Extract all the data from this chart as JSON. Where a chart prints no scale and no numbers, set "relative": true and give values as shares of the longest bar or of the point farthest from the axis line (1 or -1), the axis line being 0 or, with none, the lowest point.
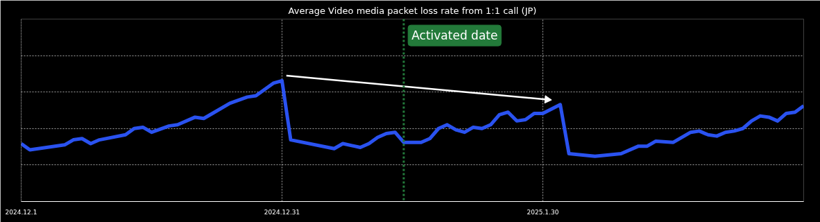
{
  "chart_data": {
    "type": "line",
    "title": "Average Video media packet loss rate from 1:1 call (JP)",
    "relative": true,
    "x": [
      "2024-12-01",
      "2024-12-02",
      "2024-12-06",
      "2024-12-07",
      "2024-12-08",
      "2024-12-09",
      "2024-12-10",
      "2024-12-13",
      "2024-12-14",
      "2024-12-15",
      "2024-12-16",
      "2024-12-18",
      "2024-12-19",
      "2024-12-21",
      "2024-12-22",
      "2024-12-23",
      "2024-12-25",
      "2024-12-27",
      "2024-12-28",
      "2024-12-30",
      "2024-12-31",
      "2025-01-01",
      "2025-01-06",
      "2025-01-07",
      "2025-01-09",
      "2025-01-10",
      "2025-01-11",
      "2025-01-12",
      "2025-01-13",
      "2025-01-14",
      "2025-01-16",
      "2025-01-17",
      "2025-01-18",
      "2025-01-19",
      "2025-01-20",
      "2025-01-21",
      "2025-01-22",
      "2025-01-23",
      "2025-01-24",
      "2025-01-25",
      "2025-01-26",
      "2025-01-27",
      "2025-01-28",
      "2025-01-29",
      "2025-01-30",
      "2025-02-01",
      "2025-02-02",
      "2025-02-05",
      "2025-02-08",
      "2025-02-10",
      "2025-02-11",
      "2025-02-12",
      "2025-02-14",
      "2025-02-16",
      "2025-02-17",
      "2025-02-18",
      "2025-02-19",
      "2025-02-20",
      "2025-02-21",
      "2025-02-22",
      "2025-02-23",
      "2025-02-24",
      "2025-02-25",
      "2025-02-26",
      "2025-02-27",
      "2025-02-28",
      "2025-03-01"
    ],
    "series": [
      {
        "color": "#2a52f0",
        "values": [
          0.46,
          0.41,
          0.45,
          0.49,
          0.5,
          0.46,
          0.49,
          0.53,
          0.58,
          0.59,
          0.55,
          0.6,
          0.61,
          0.67,
          0.66,
          0.7,
          0.78,
          0.83,
          0.84,
          0.94,
          0.96,
          0.49,
          0.42,
          0.46,
          0.43,
          0.46,
          0.51,
          0.54,
          0.55,
          0.47,
          0.47,
          0.5,
          0.58,
          0.61,
          0.57,
          0.55,
          0.59,
          0.58,
          0.61,
          0.69,
          0.71,
          0.64,
          0.65,
          0.7,
          0.7,
          0.77,
          0.38,
          0.36,
          0.38,
          0.44,
          0.44,
          0.48,
          0.47,
          0.55,
          0.56,
          0.53,
          0.52,
          0.55,
          0.56,
          0.58,
          0.64,
          0.68,
          0.67,
          0.64,
          0.7,
          0.71,
          0.76
        ]
      },
      {
        "type": "line",
        "color": "#ffffff",
        "x": [
          "2024-12-31T12:00",
          "2025-01-30T12:00"
        ],
        "values": [
          1.0,
          0.81
        ]
      }
    ],
    "xlim": [
      "2024-12-01",
      "2025-03-01"
    ],
    "xticks": [
      {
        "value": "2024-12-01",
        "label": "2024.12.1"
      },
      {
        "value": "2024-12-31",
        "label": "2024.12.31"
      },
      {
        "value": "2025-01-30",
        "label": "2025.1.30"
      }
    ],
    "ref_lines": [
      {
        "axis": "x",
        "value": "2025-01-14",
        "label": "Activated date",
        "color": "#237a3a",
        "line_style": "dotted"
      }
    ],
    "grid": true
  }
}
